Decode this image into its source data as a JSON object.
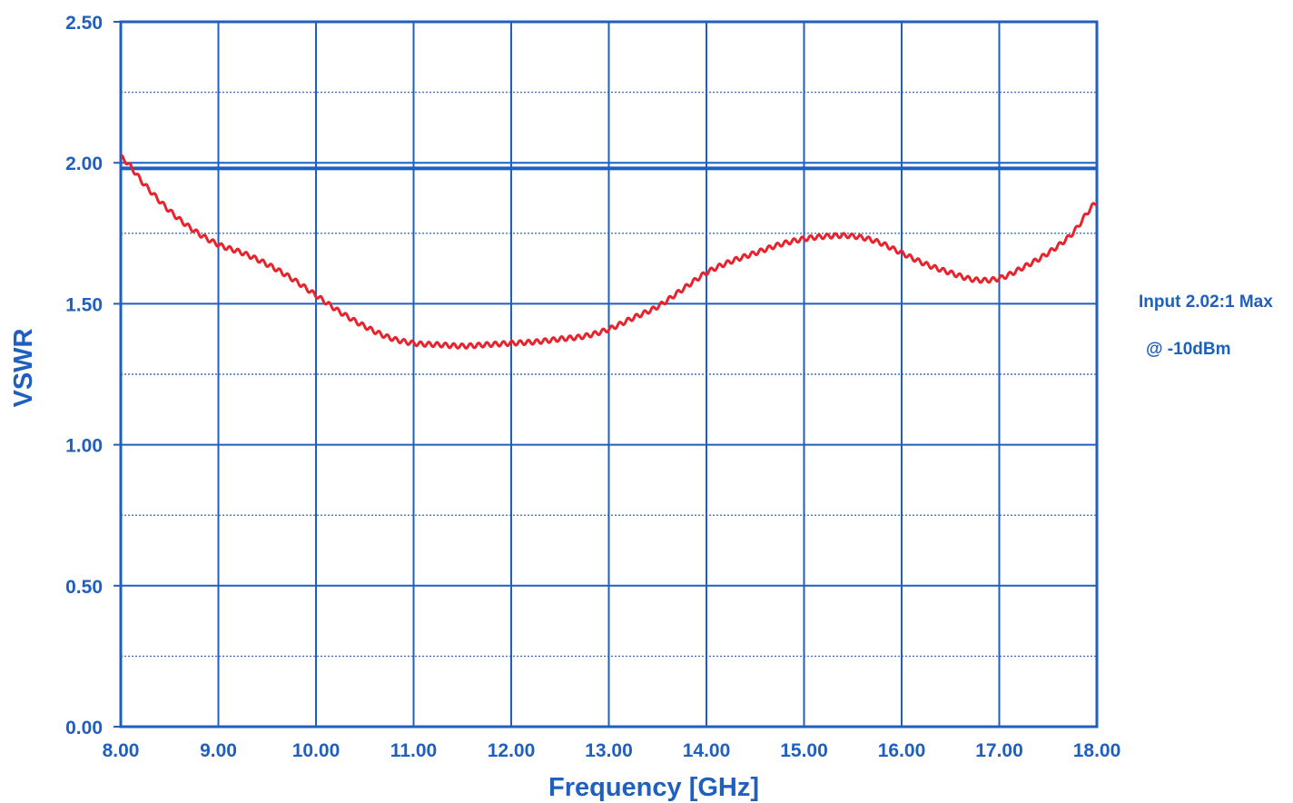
{
  "chart_data": {
    "type": "line",
    "xlabel": "Frequency [GHz]",
    "ylabel": "VSWR",
    "xlim": [
      8,
      18
    ],
    "ylim": [
      0,
      2.5
    ],
    "x_ticks": [
      "8.00",
      "9.00",
      "10.00",
      "11.00",
      "12.00",
      "13.00",
      "14.00",
      "15.00",
      "16.00",
      "17.00",
      "18.00"
    ],
    "y_ticks": [
      "0.00",
      "0.50",
      "1.00",
      "1.50",
      "2.00",
      "2.50"
    ],
    "y_minor_gridlines": [
      0.25,
      0.75,
      1.25,
      1.75,
      2.25
    ],
    "limit_line": 1.98,
    "grid": true,
    "annotations": [
      "Input 2.02:1 Max",
      "@ -10dBm"
    ],
    "series": [
      {
        "x": [
          8.0,
          8.25,
          8.5,
          8.75,
          9.0,
          9.25,
          9.5,
          9.75,
          10.0,
          10.25,
          10.5,
          10.75,
          11.0,
          11.25,
          11.5,
          11.75,
          12.0,
          12.25,
          12.5,
          12.75,
          13.0,
          13.25,
          13.5,
          13.75,
          14.0,
          14.25,
          14.5,
          14.75,
          15.0,
          15.25,
          15.5,
          15.75,
          16.0,
          16.25,
          16.5,
          16.75,
          17.0,
          17.25,
          17.5,
          17.75,
          18.0
        ],
        "values": [
          2.02,
          1.92,
          1.83,
          1.76,
          1.71,
          1.68,
          1.64,
          1.59,
          1.53,
          1.47,
          1.42,
          1.38,
          1.36,
          1.355,
          1.35,
          1.355,
          1.36,
          1.365,
          1.375,
          1.385,
          1.41,
          1.45,
          1.49,
          1.55,
          1.61,
          1.65,
          1.68,
          1.71,
          1.73,
          1.74,
          1.74,
          1.72,
          1.68,
          1.64,
          1.61,
          1.585,
          1.59,
          1.63,
          1.68,
          1.75,
          1.86
        ]
      }
    ],
    "colors": {
      "axis": "#1f5fbf",
      "grid": "#1f5fbf",
      "minor_grid": "#3a72c9",
      "trace": "#e8232d",
      "text": "#1f5fbf"
    }
  }
}
